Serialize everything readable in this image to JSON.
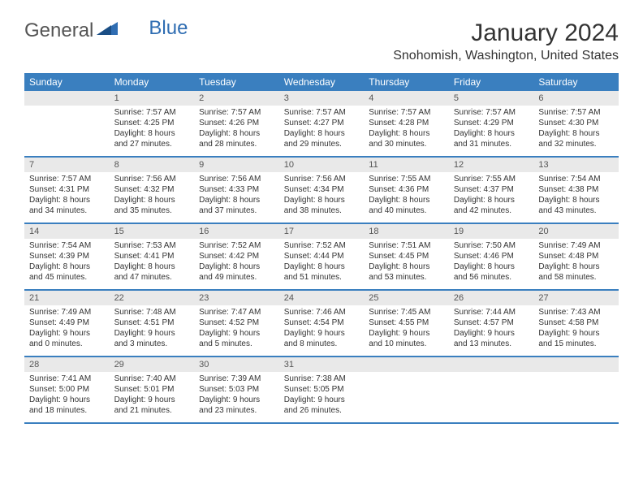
{
  "logo": {
    "text_general": "General",
    "text_blue": "Blue"
  },
  "title": "January 2024",
  "location": "Snohomish, Washington, United States",
  "accent_color": "#3a7fbf",
  "daynum_bg": "#e9e9e9",
  "day_headers": [
    "Sunday",
    "Monday",
    "Tuesday",
    "Wednesday",
    "Thursday",
    "Friday",
    "Saturday"
  ],
  "weeks": [
    [
      {
        "n": "",
        "sunrise": "",
        "sunset": "",
        "day_a": "",
        "day_b": ""
      },
      {
        "n": "1",
        "sunrise": "Sunrise: 7:57 AM",
        "sunset": "Sunset: 4:25 PM",
        "day_a": "Daylight: 8 hours",
        "day_b": "and 27 minutes."
      },
      {
        "n": "2",
        "sunrise": "Sunrise: 7:57 AM",
        "sunset": "Sunset: 4:26 PM",
        "day_a": "Daylight: 8 hours",
        "day_b": "and 28 minutes."
      },
      {
        "n": "3",
        "sunrise": "Sunrise: 7:57 AM",
        "sunset": "Sunset: 4:27 PM",
        "day_a": "Daylight: 8 hours",
        "day_b": "and 29 minutes."
      },
      {
        "n": "4",
        "sunrise": "Sunrise: 7:57 AM",
        "sunset": "Sunset: 4:28 PM",
        "day_a": "Daylight: 8 hours",
        "day_b": "and 30 minutes."
      },
      {
        "n": "5",
        "sunrise": "Sunrise: 7:57 AM",
        "sunset": "Sunset: 4:29 PM",
        "day_a": "Daylight: 8 hours",
        "day_b": "and 31 minutes."
      },
      {
        "n": "6",
        "sunrise": "Sunrise: 7:57 AM",
        "sunset": "Sunset: 4:30 PM",
        "day_a": "Daylight: 8 hours",
        "day_b": "and 32 minutes."
      }
    ],
    [
      {
        "n": "7",
        "sunrise": "Sunrise: 7:57 AM",
        "sunset": "Sunset: 4:31 PM",
        "day_a": "Daylight: 8 hours",
        "day_b": "and 34 minutes."
      },
      {
        "n": "8",
        "sunrise": "Sunrise: 7:56 AM",
        "sunset": "Sunset: 4:32 PM",
        "day_a": "Daylight: 8 hours",
        "day_b": "and 35 minutes."
      },
      {
        "n": "9",
        "sunrise": "Sunrise: 7:56 AM",
        "sunset": "Sunset: 4:33 PM",
        "day_a": "Daylight: 8 hours",
        "day_b": "and 37 minutes."
      },
      {
        "n": "10",
        "sunrise": "Sunrise: 7:56 AM",
        "sunset": "Sunset: 4:34 PM",
        "day_a": "Daylight: 8 hours",
        "day_b": "and 38 minutes."
      },
      {
        "n": "11",
        "sunrise": "Sunrise: 7:55 AM",
        "sunset": "Sunset: 4:36 PM",
        "day_a": "Daylight: 8 hours",
        "day_b": "and 40 minutes."
      },
      {
        "n": "12",
        "sunrise": "Sunrise: 7:55 AM",
        "sunset": "Sunset: 4:37 PM",
        "day_a": "Daylight: 8 hours",
        "day_b": "and 42 minutes."
      },
      {
        "n": "13",
        "sunrise": "Sunrise: 7:54 AM",
        "sunset": "Sunset: 4:38 PM",
        "day_a": "Daylight: 8 hours",
        "day_b": "and 43 minutes."
      }
    ],
    [
      {
        "n": "14",
        "sunrise": "Sunrise: 7:54 AM",
        "sunset": "Sunset: 4:39 PM",
        "day_a": "Daylight: 8 hours",
        "day_b": "and 45 minutes."
      },
      {
        "n": "15",
        "sunrise": "Sunrise: 7:53 AM",
        "sunset": "Sunset: 4:41 PM",
        "day_a": "Daylight: 8 hours",
        "day_b": "and 47 minutes."
      },
      {
        "n": "16",
        "sunrise": "Sunrise: 7:52 AM",
        "sunset": "Sunset: 4:42 PM",
        "day_a": "Daylight: 8 hours",
        "day_b": "and 49 minutes."
      },
      {
        "n": "17",
        "sunrise": "Sunrise: 7:52 AM",
        "sunset": "Sunset: 4:44 PM",
        "day_a": "Daylight: 8 hours",
        "day_b": "and 51 minutes."
      },
      {
        "n": "18",
        "sunrise": "Sunrise: 7:51 AM",
        "sunset": "Sunset: 4:45 PM",
        "day_a": "Daylight: 8 hours",
        "day_b": "and 53 minutes."
      },
      {
        "n": "19",
        "sunrise": "Sunrise: 7:50 AM",
        "sunset": "Sunset: 4:46 PM",
        "day_a": "Daylight: 8 hours",
        "day_b": "and 56 minutes."
      },
      {
        "n": "20",
        "sunrise": "Sunrise: 7:49 AM",
        "sunset": "Sunset: 4:48 PM",
        "day_a": "Daylight: 8 hours",
        "day_b": "and 58 minutes."
      }
    ],
    [
      {
        "n": "21",
        "sunrise": "Sunrise: 7:49 AM",
        "sunset": "Sunset: 4:49 PM",
        "day_a": "Daylight: 9 hours",
        "day_b": "and 0 minutes."
      },
      {
        "n": "22",
        "sunrise": "Sunrise: 7:48 AM",
        "sunset": "Sunset: 4:51 PM",
        "day_a": "Daylight: 9 hours",
        "day_b": "and 3 minutes."
      },
      {
        "n": "23",
        "sunrise": "Sunrise: 7:47 AM",
        "sunset": "Sunset: 4:52 PM",
        "day_a": "Daylight: 9 hours",
        "day_b": "and 5 minutes."
      },
      {
        "n": "24",
        "sunrise": "Sunrise: 7:46 AM",
        "sunset": "Sunset: 4:54 PM",
        "day_a": "Daylight: 9 hours",
        "day_b": "and 8 minutes."
      },
      {
        "n": "25",
        "sunrise": "Sunrise: 7:45 AM",
        "sunset": "Sunset: 4:55 PM",
        "day_a": "Daylight: 9 hours",
        "day_b": "and 10 minutes."
      },
      {
        "n": "26",
        "sunrise": "Sunrise: 7:44 AM",
        "sunset": "Sunset: 4:57 PM",
        "day_a": "Daylight: 9 hours",
        "day_b": "and 13 minutes."
      },
      {
        "n": "27",
        "sunrise": "Sunrise: 7:43 AM",
        "sunset": "Sunset: 4:58 PM",
        "day_a": "Daylight: 9 hours",
        "day_b": "and 15 minutes."
      }
    ],
    [
      {
        "n": "28",
        "sunrise": "Sunrise: 7:41 AM",
        "sunset": "Sunset: 5:00 PM",
        "day_a": "Daylight: 9 hours",
        "day_b": "and 18 minutes."
      },
      {
        "n": "29",
        "sunrise": "Sunrise: 7:40 AM",
        "sunset": "Sunset: 5:01 PM",
        "day_a": "Daylight: 9 hours",
        "day_b": "and 21 minutes."
      },
      {
        "n": "30",
        "sunrise": "Sunrise: 7:39 AM",
        "sunset": "Sunset: 5:03 PM",
        "day_a": "Daylight: 9 hours",
        "day_b": "and 23 minutes."
      },
      {
        "n": "31",
        "sunrise": "Sunrise: 7:38 AM",
        "sunset": "Sunset: 5:05 PM",
        "day_a": "Daylight: 9 hours",
        "day_b": "and 26 minutes."
      },
      {
        "n": "",
        "sunrise": "",
        "sunset": "",
        "day_a": "",
        "day_b": ""
      },
      {
        "n": "",
        "sunrise": "",
        "sunset": "",
        "day_a": "",
        "day_b": ""
      },
      {
        "n": "",
        "sunrise": "",
        "sunset": "",
        "day_a": "",
        "day_b": ""
      }
    ]
  ]
}
